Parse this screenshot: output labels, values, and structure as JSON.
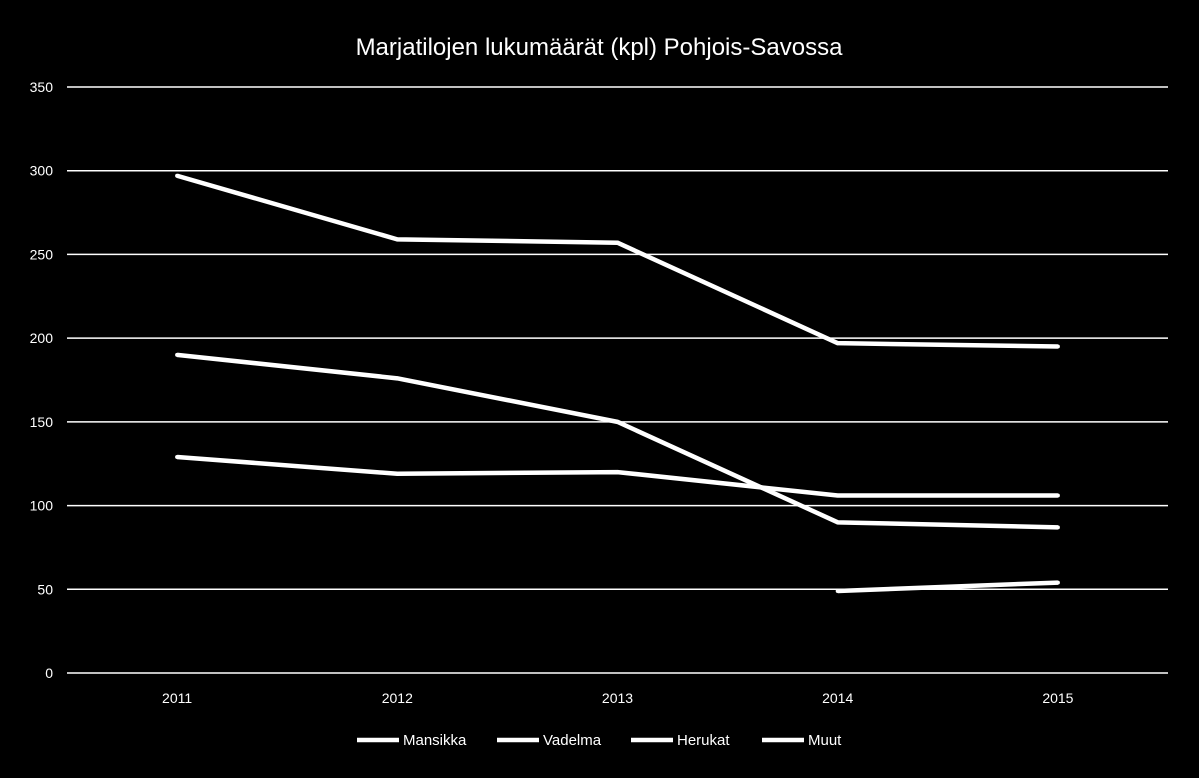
{
  "chart_data": {
    "type": "line",
    "title": "Marjatilojen lukumäärät (kpl) Pohjois-Savossa",
    "xlabel": "",
    "ylabel": "",
    "categories": [
      "2011",
      "2012",
      "2013",
      "2014",
      "2015"
    ],
    "ylim": [
      0,
      350
    ],
    "yticks": [
      0,
      50,
      100,
      150,
      200,
      250,
      300,
      350
    ],
    "grid": true,
    "legend_position": "bottom",
    "series": [
      {
        "name": "Mansikka",
        "values": [
          297,
          259,
          257,
          197,
          195
        ]
      },
      {
        "name": "Vadelma",
        "values": [
          190,
          176,
          150,
          90,
          87
        ]
      },
      {
        "name": "Herukat",
        "values": [
          129,
          119,
          120,
          106,
          106
        ]
      },
      {
        "name": "Muut",
        "values": [
          null,
          null,
          null,
          49,
          54
        ]
      }
    ],
    "colors": {
      "background": "#000000",
      "line": "#ffffff",
      "grid": "#ffffff"
    }
  }
}
